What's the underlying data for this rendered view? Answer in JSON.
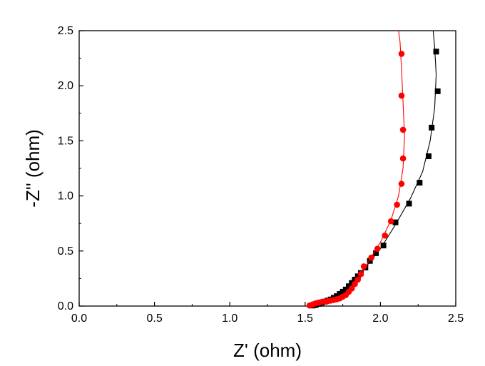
{
  "chart_data": {
    "type": "scatter",
    "xlabel": "Z' (ohm)",
    "ylabel": "-Z'' (ohm)",
    "xlim": [
      0.0,
      2.5
    ],
    "ylim": [
      0.0,
      2.5
    ],
    "x_ticks": [
      "0.0",
      "0.5",
      "1.0",
      "1.5",
      "2.0",
      "2.5"
    ],
    "y_ticks": [
      "0.0",
      "0.5",
      "1.0",
      "1.5",
      "2.0",
      "2.5"
    ],
    "grid": false,
    "legend": "none",
    "series": [
      {
        "color": "#000000",
        "marker": "square",
        "points": [
          [
            1.55,
            0.005
          ],
          [
            1.57,
            0.01
          ],
          [
            1.59,
            0.02
          ],
          [
            1.61,
            0.03
          ],
          [
            1.63,
            0.04
          ],
          [
            1.65,
            0.05
          ],
          [
            1.67,
            0.06
          ],
          [
            1.69,
            0.075
          ],
          [
            1.71,
            0.09
          ],
          [
            1.73,
            0.11
          ],
          [
            1.75,
            0.13
          ],
          [
            1.77,
            0.15
          ],
          [
            1.79,
            0.18
          ],
          [
            1.81,
            0.21
          ],
          [
            1.83,
            0.24
          ],
          [
            1.85,
            0.27
          ],
          [
            1.87,
            0.3
          ],
          [
            1.9,
            0.35
          ],
          [
            1.93,
            0.41
          ],
          [
            1.97,
            0.48
          ],
          [
            2.02,
            0.55
          ],
          [
            2.1,
            0.76
          ],
          [
            2.19,
            0.93
          ],
          [
            2.26,
            1.12
          ],
          [
            2.32,
            1.36
          ],
          [
            2.34,
            1.62
          ],
          [
            2.38,
            1.95
          ],
          [
            2.37,
            2.31
          ]
        ],
        "line": [
          [
            1.53,
            0.0
          ],
          [
            1.6,
            0.025
          ],
          [
            1.7,
            0.08
          ],
          [
            1.8,
            0.19
          ],
          [
            1.9,
            0.35
          ],
          [
            2.0,
            0.52
          ],
          [
            2.1,
            0.74
          ],
          [
            2.2,
            0.98
          ],
          [
            2.28,
            1.22
          ],
          [
            2.33,
            1.5
          ],
          [
            2.36,
            1.8
          ],
          [
            2.37,
            2.1
          ],
          [
            2.36,
            2.35
          ],
          [
            2.35,
            2.5
          ]
        ]
      },
      {
        "color": "#ff0000",
        "marker": "circle",
        "points": [
          [
            1.53,
            0.005
          ],
          [
            1.55,
            0.015
          ],
          [
            1.57,
            0.025
          ],
          [
            1.59,
            0.032
          ],
          [
            1.61,
            0.038
          ],
          [
            1.63,
            0.042
          ],
          [
            1.65,
            0.045
          ],
          [
            1.67,
            0.05
          ],
          [
            1.69,
            0.055
          ],
          [
            1.71,
            0.062
          ],
          [
            1.73,
            0.07
          ],
          [
            1.75,
            0.085
          ],
          [
            1.77,
            0.1
          ],
          [
            1.79,
            0.13
          ],
          [
            1.81,
            0.16
          ],
          [
            1.83,
            0.2
          ],
          [
            1.85,
            0.24
          ],
          [
            1.87,
            0.29
          ],
          [
            1.89,
            0.36
          ],
          [
            1.94,
            0.44
          ],
          [
            1.98,
            0.52
          ],
          [
            2.03,
            0.64
          ],
          [
            2.07,
            0.77
          ],
          [
            2.11,
            0.92
          ],
          [
            2.14,
            1.11
          ],
          [
            2.15,
            1.34
          ],
          [
            2.15,
            1.6
          ],
          [
            2.14,
            1.91
          ],
          [
            2.14,
            2.29
          ]
        ],
        "line": [
          [
            1.52,
            0.0
          ],
          [
            1.6,
            0.035
          ],
          [
            1.7,
            0.06
          ],
          [
            1.78,
            0.12
          ],
          [
            1.85,
            0.24
          ],
          [
            1.92,
            0.4
          ],
          [
            2.0,
            0.58
          ],
          [
            2.07,
            0.78
          ],
          [
            2.12,
            1.0
          ],
          [
            2.15,
            1.25
          ],
          [
            2.16,
            1.55
          ],
          [
            2.15,
            1.85
          ],
          [
            2.14,
            2.15
          ],
          [
            2.13,
            2.4
          ],
          [
            2.12,
            2.5
          ]
        ]
      }
    ]
  }
}
